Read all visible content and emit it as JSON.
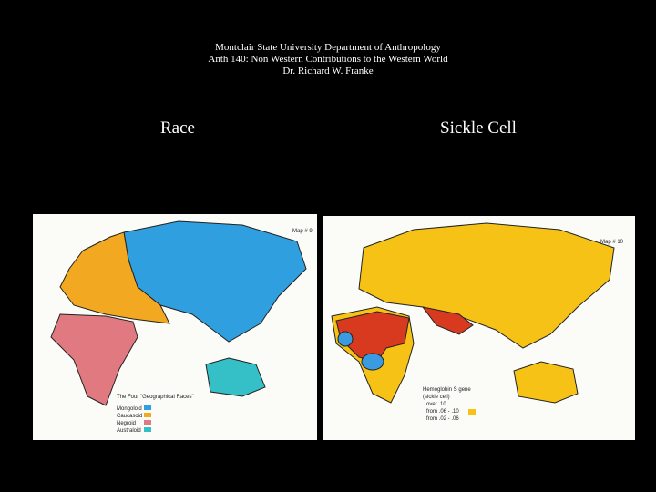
{
  "header": {
    "lines": [
      "Montclair State University Department of Anthropology",
      "Anth 140: Non Western Contributions to the Western World",
      "Dr. Richard W. Franke"
    ]
  },
  "panels": [
    {
      "label": "Race",
      "map": {
        "title": "Map # 9",
        "legend_title": "The Four \"Geographical Races\"",
        "legend": [
          "Mongoloid",
          "Caucasoid",
          "Negroid",
          "Australoid"
        ]
      }
    },
    {
      "label": "Sickle Cell",
      "map": {
        "title": "Map # 10",
        "legend_title": "Hemoglobin S gene",
        "legend_subtitle": "(sickle cell)",
        "legend": [
          "over .10",
          "from .06 - .10",
          "from .02 - .06"
        ]
      }
    }
  ]
}
